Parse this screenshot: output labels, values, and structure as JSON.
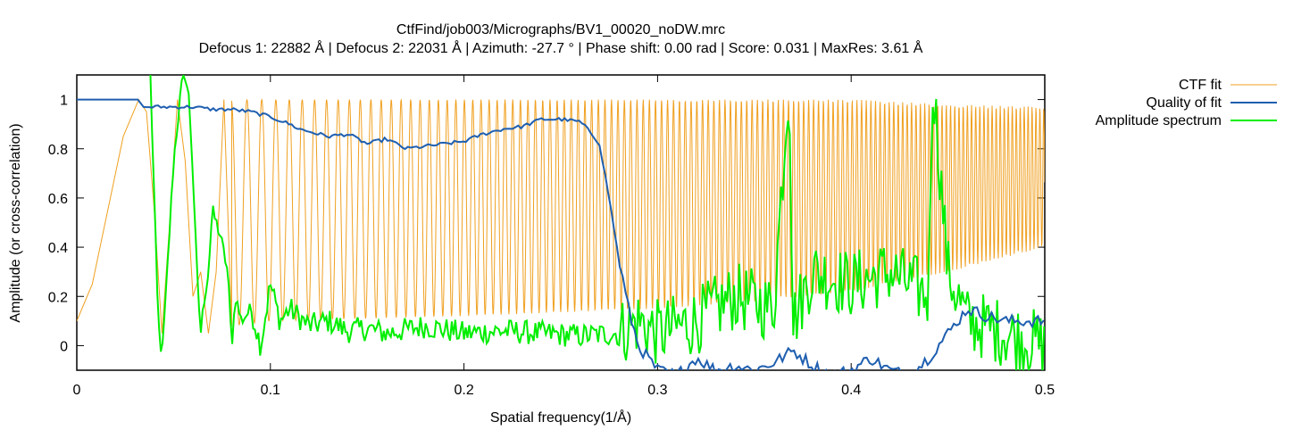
{
  "chart_data": {
    "type": "line",
    "title": "CtfFind/job003/Micrographs/BV1_00020_noDW.mrc",
    "subtitle": "Defocus 1: 22882 Å | Defocus 2: 22031 Å | Azimuth: -27.7 ° | Phase shift: 0.00 rad | Score: 0.031 | MaxRes: 3.61 Å",
    "xlabel": "Spatial frequency(1/Å)",
    "ylabel": "Amplitude (or cross-correlation)",
    "xlim": [
      0,
      0.5
    ],
    "ylim": [
      -0.1,
      1.1
    ],
    "xticks": [
      0,
      0.1,
      0.2,
      0.3,
      0.4,
      0.5
    ],
    "xtick_labels": [
      "0",
      "0.1",
      "0.2",
      "0.3",
      "0.4",
      "0.5"
    ],
    "yticks": [
      0,
      0.2,
      0.4,
      0.6,
      0.8,
      1
    ],
    "ytick_labels": [
      "0",
      "0.2",
      "0.4",
      "0.6",
      "0.8",
      "1"
    ],
    "legend_position": "outside-top-right",
    "grid": false,
    "series": [
      {
        "name": "CTF fit",
        "color": "#f0a020",
        "x": [
          0,
          0.008,
          0.016,
          0.024,
          0.032,
          0.036,
          0.04,
          0.044,
          0.048,
          0.052,
          0.056,
          0.06,
          0.064,
          0.068,
          0.072,
          0.076,
          0.08,
          0.1,
          0.15,
          0.2,
          0.25,
          0.3,
          0.35,
          0.4,
          0.45,
          0.5
        ],
        "y": [
          0.1,
          0.25,
          0.55,
          0.85,
          1.0,
          0.95,
          0.55,
          0.05,
          0.5,
          1.0,
          0.75,
          0.2,
          0.3,
          0.05,
          0.3,
          1.0,
          0.08,
          0.1,
          0.11,
          0.12,
          0.14,
          0.18,
          0.2,
          0.25,
          0.3,
          0.4
        ],
        "envelope_upper": {
          "x": [
            0.08,
            0.1,
            0.2,
            0.3,
            0.35,
            0.4,
            0.45,
            0.5
          ],
          "y": [
            1.0,
            1.0,
            1.0,
            1.0,
            1.0,
            1.0,
            0.98,
            0.97
          ]
        },
        "envelope_lower": {
          "x": [
            0.08,
            0.1,
            0.2,
            0.3,
            0.35,
            0.4,
            0.45,
            0.5
          ],
          "y": [
            0.08,
            0.1,
            0.12,
            0.15,
            0.18,
            0.22,
            0.3,
            0.4
          ]
        }
      },
      {
        "name": "Quality of fit",
        "color": "#1f5fb0",
        "x": [
          0,
          0.032,
          0.034,
          0.06,
          0.07,
          0.08,
          0.09,
          0.1,
          0.11,
          0.115,
          0.12,
          0.13,
          0.14,
          0.15,
          0.16,
          0.17,
          0.18,
          0.19,
          0.2,
          0.21,
          0.22,
          0.23,
          0.24,
          0.25,
          0.26,
          0.265,
          0.27,
          0.275,
          0.28,
          0.285,
          0.29,
          0.3,
          0.31,
          0.32,
          0.33,
          0.34,
          0.35,
          0.36,
          0.37,
          0.38,
          0.39,
          0.4,
          0.41,
          0.42,
          0.43,
          0.44,
          0.45,
          0.46,
          0.47,
          0.48,
          0.49,
          0.5
        ],
        "y": [
          1.0,
          1.0,
          0.97,
          0.97,
          0.96,
          0.96,
          0.95,
          0.93,
          0.9,
          0.88,
          0.87,
          0.85,
          0.86,
          0.82,
          0.84,
          0.8,
          0.81,
          0.82,
          0.83,
          0.86,
          0.88,
          0.89,
          0.92,
          0.92,
          0.91,
          0.87,
          0.82,
          0.6,
          0.35,
          0.15,
          0.0,
          -0.1,
          -0.12,
          -0.05,
          -0.1,
          -0.08,
          -0.1,
          -0.07,
          -0.02,
          -0.08,
          -0.12,
          -0.1,
          -0.05,
          -0.1,
          -0.12,
          -0.05,
          0.05,
          0.15,
          0.12,
          0.1,
          0.1,
          0.1
        ]
      },
      {
        "name": "Amplitude spectrum",
        "color": "#00ee00",
        "x": [
          0.038,
          0.04,
          0.042,
          0.044,
          0.046,
          0.05,
          0.052,
          0.054,
          0.056,
          0.058,
          0.06,
          0.062,
          0.064,
          0.066,
          0.068,
          0.07,
          0.072,
          0.074,
          0.078,
          0.08,
          0.082,
          0.085,
          0.09,
          0.095,
          0.1,
          0.105,
          0.11,
          0.12,
          0.13,
          0.14,
          0.15,
          0.16,
          0.18,
          0.2,
          0.22,
          0.24,
          0.26,
          0.28,
          0.29,
          0.3,
          0.32,
          0.34,
          0.36,
          0.368,
          0.37,
          0.38,
          0.4,
          0.42,
          0.44,
          0.442,
          0.45,
          0.46,
          0.48,
          0.5
        ],
        "y": [
          1.1,
          0.6,
          0.1,
          -0.05,
          0.2,
          0.75,
          0.9,
          1.05,
          1.1,
          1.0,
          0.7,
          0.3,
          0.05,
          0.2,
          0.3,
          0.55,
          0.5,
          0.45,
          0.3,
          0.0,
          0.2,
          0.1,
          0.15,
          0.0,
          0.25,
          0.1,
          0.15,
          0.08,
          0.1,
          0.06,
          0.07,
          0.05,
          0.08,
          0.05,
          0.06,
          0.05,
          0.04,
          0.05,
          0.1,
          0.05,
          0.1,
          0.2,
          0.15,
          1.1,
          0.1,
          0.3,
          0.25,
          0.3,
          0.2,
          1.1,
          0.3,
          0.1,
          0.05,
          0.0
        ]
      }
    ]
  }
}
